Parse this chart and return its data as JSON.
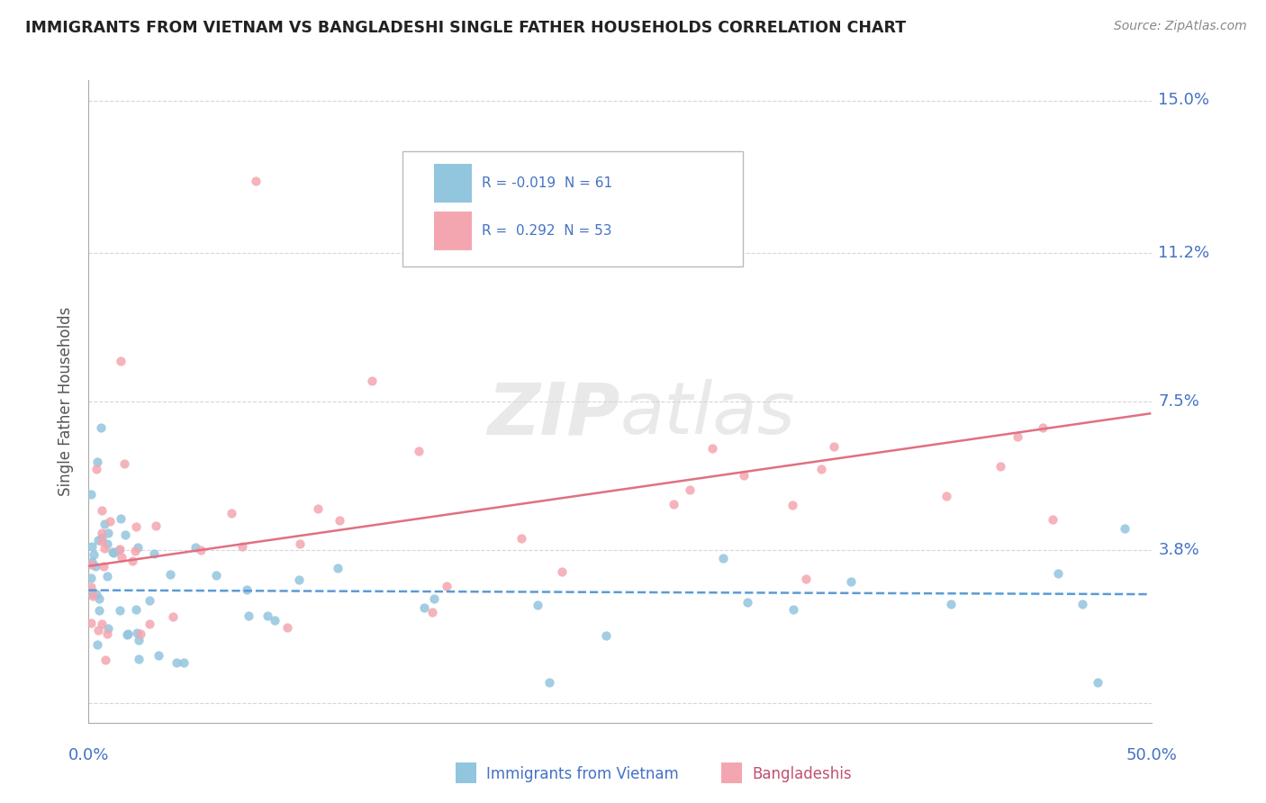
{
  "title": "IMMIGRANTS FROM VIETNAM VS BANGLADESHI SINGLE FATHER HOUSEHOLDS CORRELATION CHART",
  "source": "Source: ZipAtlas.com",
  "ylabel": "Single Father Households",
  "legend_label1": "Immigrants from Vietnam",
  "legend_label2": "Bangladeshis",
  "color_vietnam": "#92c5de",
  "color_bangladesh": "#f4a6b0",
  "trendline_color_vietnam": "#5b9bd5",
  "trendline_color_bangladesh": "#e07080",
  "background_color": "#ffffff",
  "grid_color": "#cccccc",
  "title_color": "#222222",
  "label_color": "#4472c4",
  "watermark_zip": "ZIP",
  "watermark_atlas": "atlas",
  "xlim": [
    0.0,
    0.5
  ],
  "ylim": [
    -0.005,
    0.155
  ],
  "yticks": [
    0.0,
    0.038,
    0.075,
    0.112,
    0.15
  ],
  "ytick_labels": [
    "",
    "3.8%",
    "7.5%",
    "11.2%",
    "15.0%"
  ]
}
